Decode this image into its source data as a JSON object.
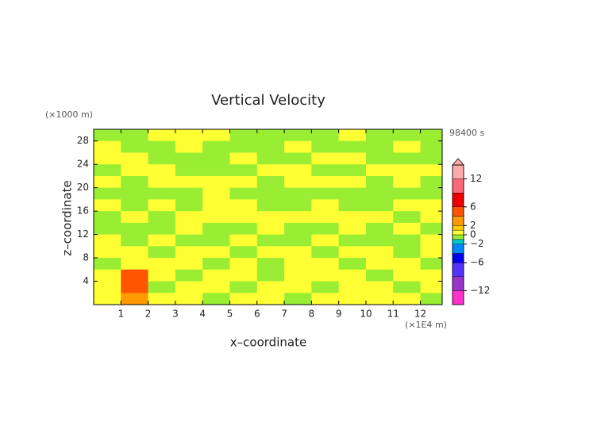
{
  "chart_data": {
    "type": "contour",
    "title": "Vertical Velocity",
    "xlabel": "x–coordinate",
    "ylabel": "z–coordinate",
    "x_unit": "(×1E4 m)",
    "y_unit": "(×1000 m)",
    "time_label": "98400 s",
    "xlim": [
      0,
      12.8
    ],
    "ylim": [
      0,
      30
    ],
    "xticks": [
      1,
      2,
      3,
      4,
      5,
      6,
      7,
      8,
      9,
      10,
      11,
      12
    ],
    "yticks": [
      4,
      8,
      12,
      16,
      20,
      24,
      28
    ],
    "x": [
      0.5,
      1.5,
      2.5,
      3.5,
      4.5,
      5.5,
      6.5,
      7.5,
      8.5,
      9.5,
      10.5,
      11.5,
      12.5
    ],
    "y": [
      29,
      27,
      25,
      23,
      21,
      19,
      17,
      15,
      13,
      11,
      9,
      7,
      5,
      3,
      1
    ],
    "z": [
      [
        -0.5,
        -0.5,
        0.5,
        0.5,
        0.5,
        -0.5,
        -0.5,
        -0.5,
        -0.5,
        0.5,
        -0.5,
        -0.5,
        -0.5
      ],
      [
        0.5,
        -0.5,
        -0.5,
        0.5,
        -0.5,
        -0.5,
        -0.5,
        0.5,
        -0.5,
        -0.5,
        -0.5,
        0.5,
        -0.5
      ],
      [
        0.5,
        0.5,
        -0.5,
        -0.5,
        -0.5,
        0.5,
        -0.5,
        -0.5,
        0.5,
        0.5,
        -0.5,
        -0.5,
        -0.5
      ],
      [
        -0.5,
        0.5,
        0.5,
        -0.5,
        -0.5,
        -0.5,
        0.5,
        0.5,
        -0.5,
        -0.5,
        0.5,
        0.5,
        0.5
      ],
      [
        0.5,
        -0.5,
        0.5,
        0.5,
        0.5,
        0.5,
        -0.5,
        0.5,
        0.5,
        0.5,
        -0.5,
        0.5,
        -0.5
      ],
      [
        -0.5,
        -0.5,
        -0.5,
        -0.5,
        0.5,
        -0.5,
        -0.5,
        -0.5,
        -0.5,
        -0.5,
        -0.5,
        -0.5,
        -0.5
      ],
      [
        0.5,
        -0.5,
        0.5,
        -0.5,
        0.5,
        0.5,
        -0.5,
        -0.5,
        0.5,
        -0.5,
        -0.5,
        0.5,
        0.5
      ],
      [
        -0.5,
        0.5,
        -0.5,
        0.5,
        0.5,
        0.5,
        0.5,
        0.5,
        0.5,
        0.5,
        0.5,
        -0.5,
        0.5
      ],
      [
        -0.5,
        -0.5,
        -0.5,
        0.5,
        -0.5,
        -0.5,
        0.5,
        -0.5,
        -0.5,
        0.5,
        -0.5,
        0.5,
        -0.5
      ],
      [
        0.5,
        -0.5,
        0.5,
        -0.5,
        -0.5,
        0.5,
        -0.5,
        -0.5,
        0.5,
        -0.5,
        -0.5,
        -0.5,
        0.5
      ],
      [
        0.5,
        0.5,
        -0.5,
        0.5,
        0.5,
        -0.5,
        0.5,
        0.5,
        -0.5,
        0.5,
        0.5,
        -0.5,
        0.5
      ],
      [
        -0.5,
        0.5,
        0.5,
        0.5,
        -0.5,
        0.5,
        -0.5,
        0.5,
        0.5,
        -0.5,
        0.5,
        0.5,
        -0.5
      ],
      [
        0.5,
        4,
        0.5,
        -0.5,
        0.5,
        0.5,
        -0.5,
        0.5,
        0.5,
        0.5,
        -0.5,
        0.5,
        0.5
      ],
      [
        0.5,
        5,
        -0.5,
        0.5,
        0.5,
        -0.5,
        0.5,
        0.5,
        -0.5,
        0.5,
        0.5,
        -0.5,
        0.5
      ],
      [
        0.5,
        3,
        0.5,
        0.5,
        -0.5,
        0.5,
        0.5,
        -0.5,
        0.5,
        0.5,
        0.5,
        0.5,
        -0.5
      ]
    ],
    "colorbar": {
      "lim": [
        -15,
        15
      ],
      "bounds": [
        -15,
        -12,
        -9,
        -6,
        -4,
        -2,
        -1,
        0,
        1,
        2,
        4,
        6,
        9,
        12,
        15
      ],
      "colors": [
        "#ff33cc",
        "#9933cc",
        "#5533ff",
        "#0000ee",
        "#0088ff",
        "#00cccc",
        "#99ee33",
        "#ffff33",
        "#ffcc00",
        "#ff9900",
        "#ff5500",
        "#ee0000",
        "#ff6677",
        "#ffaaaa"
      ],
      "ticks": [
        12,
        6,
        2,
        0,
        {
          "value": -2,
          "label": "−2"
        },
        {
          "value": -6,
          "label": "−6"
        },
        {
          "value": -12,
          "label": "−12"
        }
      ]
    }
  }
}
